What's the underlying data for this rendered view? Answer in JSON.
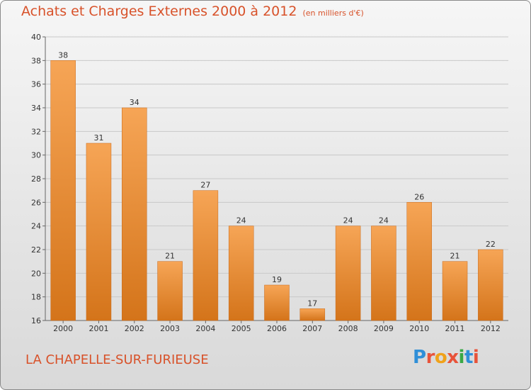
{
  "chart_data": {
    "type": "bar",
    "title": "Achats et Charges Externes 2000 à 2012",
    "subtitle": "(en milliers d'€)",
    "categories": [
      "2000",
      "2001",
      "2002",
      "2003",
      "2004",
      "2005",
      "2006",
      "2007",
      "2008",
      "2009",
      "2010",
      "2011",
      "2012"
    ],
    "values": [
      38,
      31,
      34,
      21,
      27,
      24,
      19,
      17,
      24,
      24,
      26,
      21,
      22
    ],
    "ylim": [
      16,
      40
    ],
    "yticks": [
      "16",
      "18",
      "20",
      "22",
      "24",
      "26",
      "28",
      "30",
      "32",
      "34",
      "36",
      "38",
      "40"
    ],
    "grid": true,
    "bar_color": "#f0932f",
    "xlabel": "",
    "ylabel": ""
  },
  "footer": {
    "commune": "LA CHAPELLE-SUR-FURIEUSE",
    "brand": "Proxiti",
    "brand_colors": [
      "#2f8fd8",
      "#e8533a",
      "#f0a21a",
      "#e8533a",
      "#39a845",
      "#2f8fd8",
      "#e8533a"
    ]
  },
  "colors": {
    "accent": "#d8522a"
  }
}
